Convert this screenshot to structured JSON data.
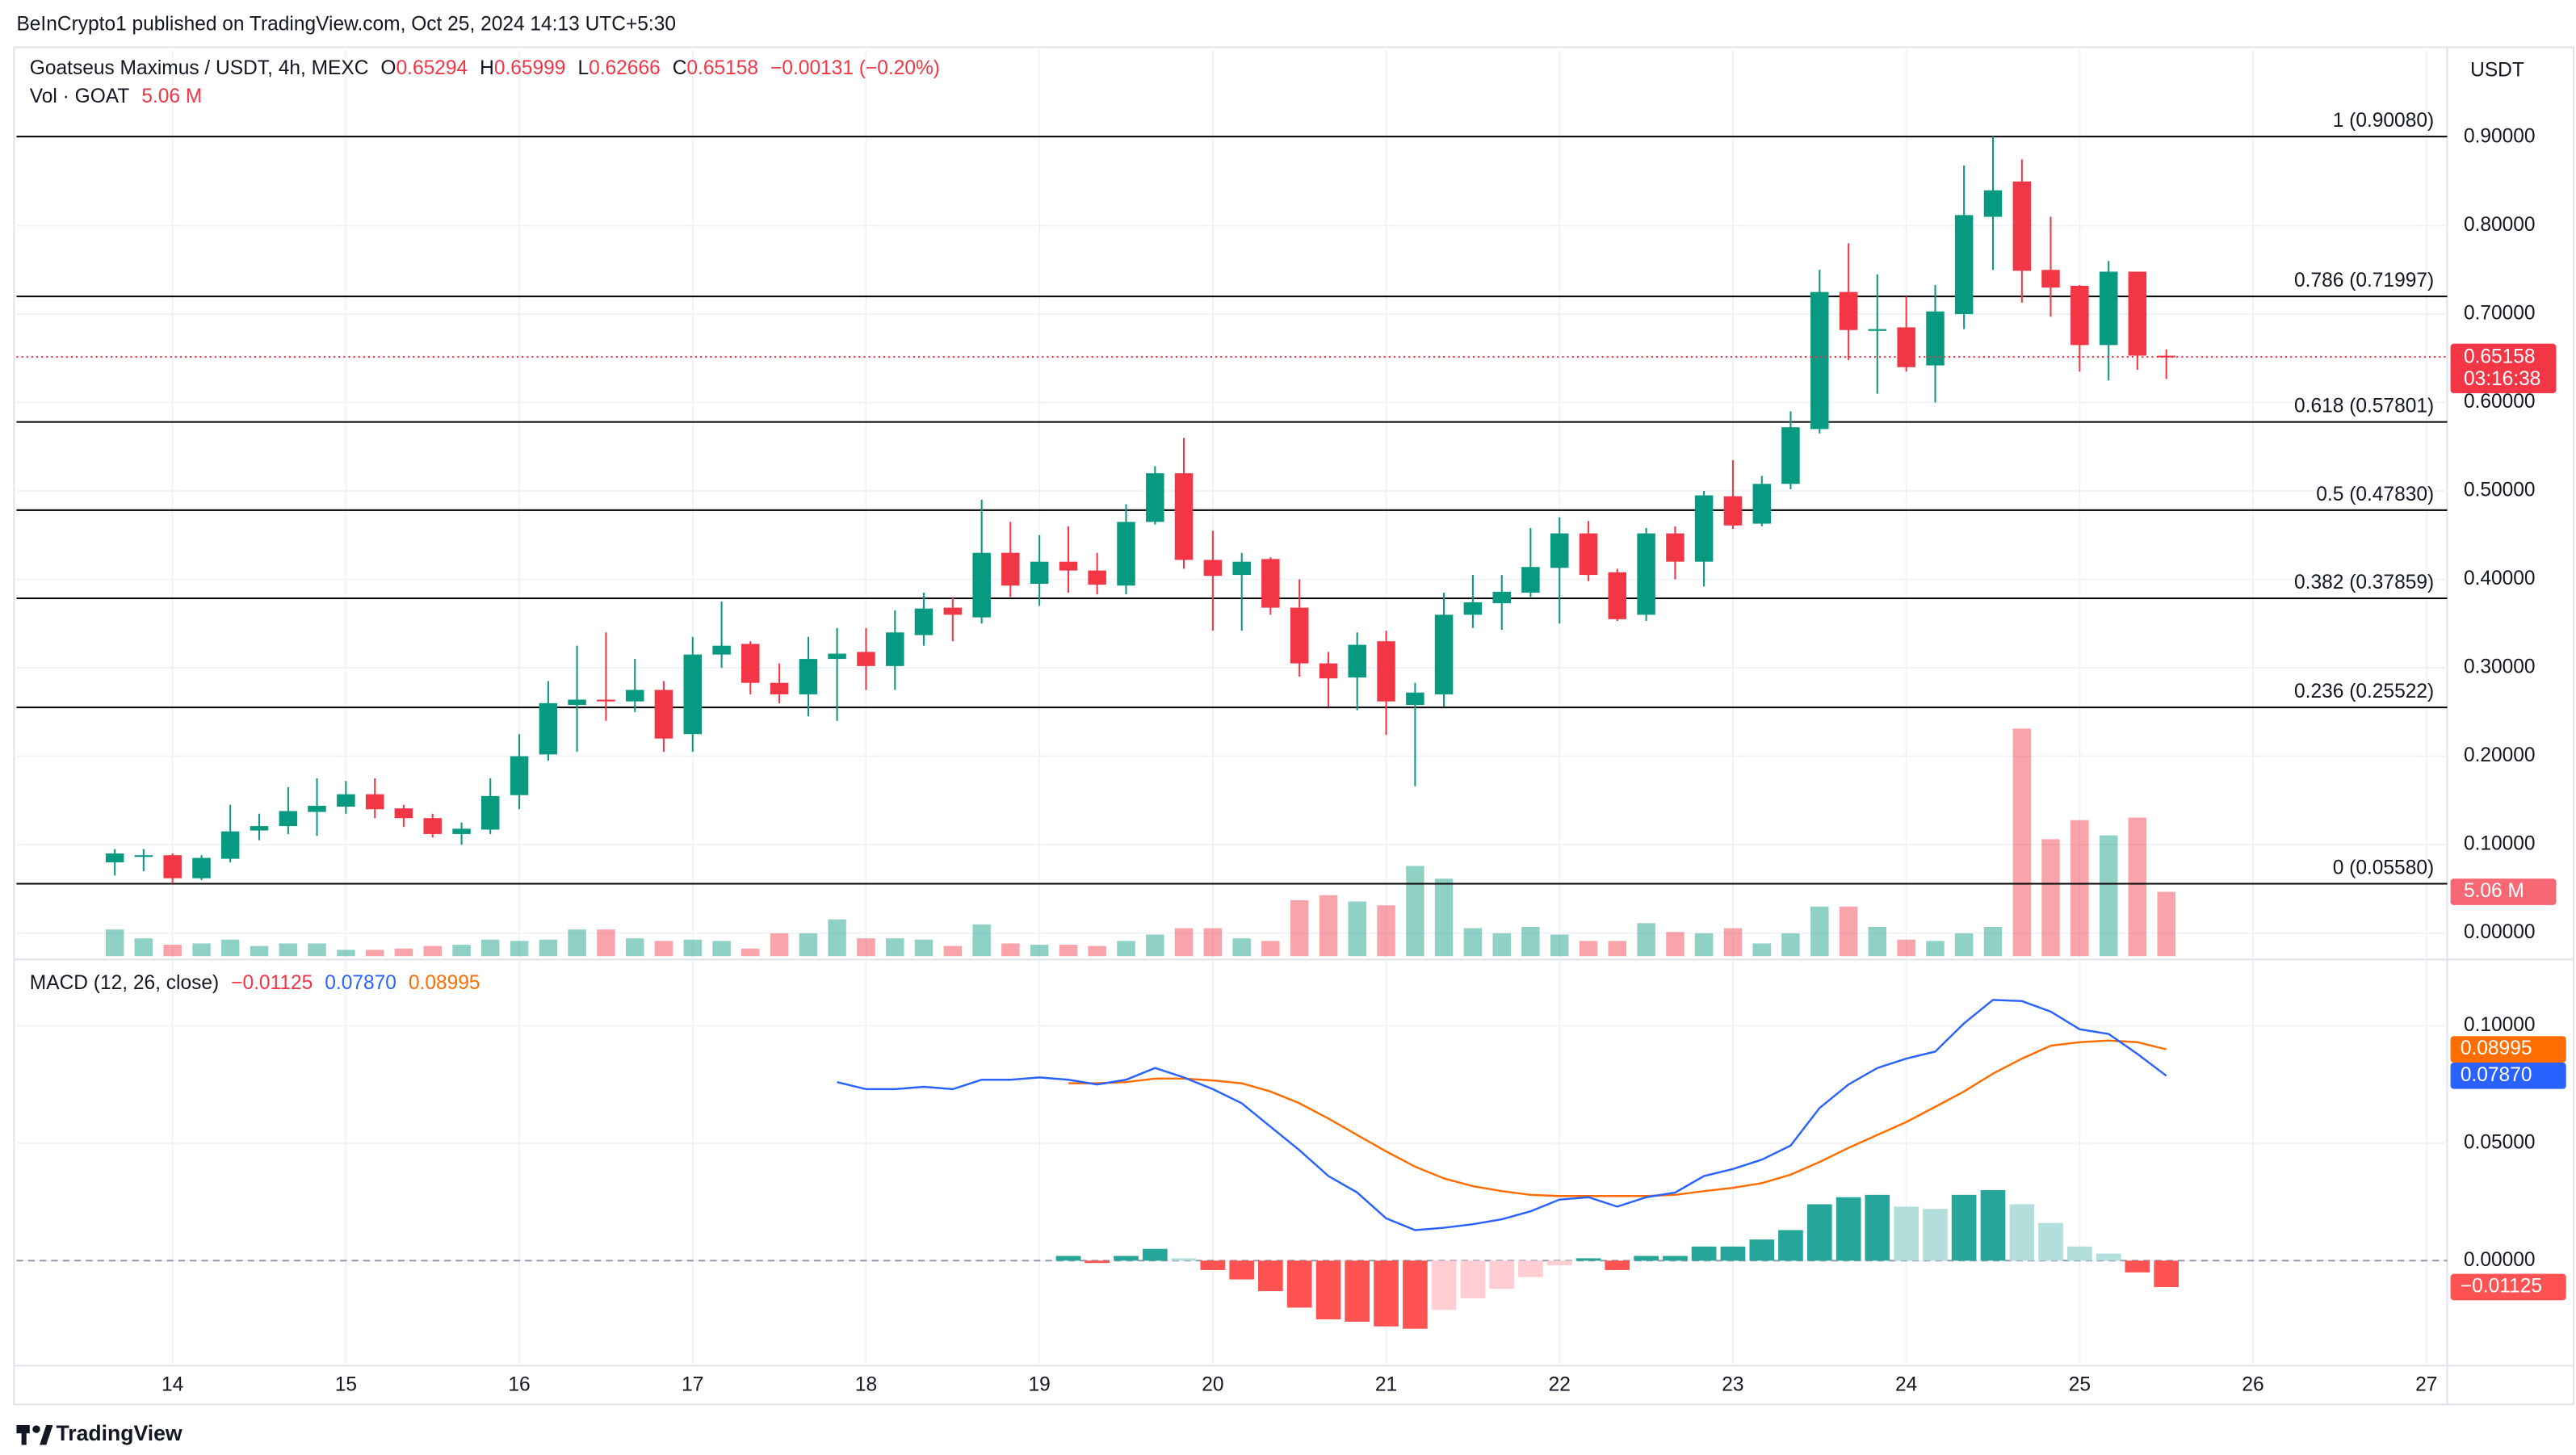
{
  "header": {
    "publisher": "BeInCrypto1 published on TradingView.com, Oct 25, 2024 14:13 UTC+5:30",
    "footer": "TradingView"
  },
  "chart_data": [
    {
      "type": "candlestick",
      "title": "Goatseus Maximus / USDT, 4h, MEXC",
      "ohlc_letters": [
        "O",
        "H",
        "L",
        "C"
      ],
      "change_label": "−0.00131 (−0.20%)",
      "currency": "USDT",
      "countdown": "03:16:38",
      "up_color": "#089981",
      "down_color": "#f23645",
      "x": [
        13.667,
        13.833,
        14,
        14.167,
        14.333,
        14.5,
        14.667,
        14.833,
        15,
        15.167,
        15.333,
        15.5,
        15.667,
        15.833,
        16,
        16.167,
        16.333,
        16.5,
        16.667,
        16.833,
        17,
        17.167,
        17.333,
        17.5,
        17.667,
        17.833,
        18,
        18.167,
        18.333,
        18.5,
        18.667,
        18.833,
        19,
        19.167,
        19.333,
        19.5,
        19.667,
        19.833,
        20,
        20.167,
        20.333,
        20.5,
        20.667,
        20.833,
        21,
        21.167,
        21.333,
        21.5,
        21.667,
        21.833,
        22,
        22.167,
        22.333,
        22.5,
        22.667,
        22.833,
        23,
        23.167,
        23.333,
        23.5,
        23.667,
        23.833,
        24,
        24.167,
        24.333,
        24.5,
        24.667,
        24.833,
        25,
        25.167,
        25.333,
        25.5
      ],
      "open": [
        0.08,
        0.087,
        0.088,
        0.062,
        0.084,
        0.116,
        0.121,
        0.137,
        0.143,
        0.157,
        0.141,
        0.13,
        0.112,
        0.117,
        0.156,
        0.202,
        0.258,
        0.264,
        0.262,
        0.275,
        0.225,
        0.315,
        0.327,
        0.283,
        0.27,
        0.31,
        0.318,
        0.302,
        0.337,
        0.368,
        0.357,
        0.43,
        0.395,
        0.42,
        0.41,
        0.393,
        0.465,
        0.52,
        0.422,
        0.405,
        0.423,
        0.368,
        0.305,
        0.289,
        0.33,
        0.258,
        0.27,
        0.36,
        0.373,
        0.385,
        0.413,
        0.452,
        0.408,
        0.36,
        0.452,
        0.42,
        0.494,
        0.463,
        0.508,
        0.57,
        0.725,
        0.681,
        0.685,
        0.642,
        0.7,
        0.81,
        0.85,
        0.75,
        0.732,
        0.665,
        0.748,
        0.65294
      ],
      "high": [
        0.095,
        0.095,
        0.09,
        0.088,
        0.145,
        0.135,
        0.165,
        0.175,
        0.172,
        0.175,
        0.145,
        0.135,
        0.125,
        0.175,
        0.225,
        0.285,
        0.325,
        0.34,
        0.31,
        0.285,
        0.335,
        0.375,
        0.33,
        0.305,
        0.335,
        0.345,
        0.345,
        0.365,
        0.385,
        0.38,
        0.49,
        0.465,
        0.45,
        0.46,
        0.43,
        0.485,
        0.528,
        0.56,
        0.455,
        0.43,
        0.425,
        0.4,
        0.318,
        0.34,
        0.342,
        0.283,
        0.385,
        0.405,
        0.405,
        0.458,
        0.47,
        0.466,
        0.412,
        0.458,
        0.46,
        0.5,
        0.535,
        0.517,
        0.59,
        0.75,
        0.78,
        0.745,
        0.72,
        0.733,
        0.868,
        0.9008,
        0.875,
        0.81,
        0.733,
        0.76,
        0.748,
        0.65999
      ],
      "low": [
        0.065,
        0.07,
        0.0558,
        0.06,
        0.08,
        0.105,
        0.112,
        0.11,
        0.135,
        0.13,
        0.12,
        0.108,
        0.1,
        0.112,
        0.14,
        0.195,
        0.205,
        0.24,
        0.25,
        0.205,
        0.205,
        0.3,
        0.27,
        0.26,
        0.245,
        0.24,
        0.275,
        0.275,
        0.325,
        0.33,
        0.35,
        0.38,
        0.37,
        0.385,
        0.383,
        0.383,
        0.462,
        0.412,
        0.342,
        0.342,
        0.36,
        0.29,
        0.256,
        0.252,
        0.224,
        0.166,
        0.256,
        0.345,
        0.343,
        0.38,
        0.35,
        0.398,
        0.353,
        0.353,
        0.4,
        0.392,
        0.457,
        0.46,
        0.502,
        0.565,
        0.648,
        0.61,
        0.635,
        0.6,
        0.683,
        0.75,
        0.713,
        0.697,
        0.635,
        0.625,
        0.637,
        0.62666
      ],
      "close": [
        0.09,
        0.088,
        0.062,
        0.085,
        0.115,
        0.121,
        0.138,
        0.144,
        0.157,
        0.14,
        0.13,
        0.112,
        0.118,
        0.155,
        0.2,
        0.26,
        0.264,
        0.262,
        0.275,
        0.22,
        0.315,
        0.325,
        0.283,
        0.27,
        0.31,
        0.316,
        0.302,
        0.34,
        0.367,
        0.36,
        0.43,
        0.393,
        0.42,
        0.41,
        0.394,
        0.465,
        0.52,
        0.422,
        0.404,
        0.42,
        0.368,
        0.305,
        0.288,
        0.326,
        0.262,
        0.272,
        0.36,
        0.374,
        0.386,
        0.414,
        0.452,
        0.405,
        0.355,
        0.452,
        0.42,
        0.495,
        0.461,
        0.508,
        0.572,
        0.725,
        0.682,
        0.683,
        0.64,
        0.703,
        0.812,
        0.84,
        0.749,
        0.73,
        0.665,
        0.748,
        0.653,
        0.65158
      ],
      "volume": {
        "name": "Vol · GOAT",
        "value_label": "5.06 M",
        "values": [
          2.1,
          1.4,
          0.9,
          1.0,
          1.3,
          0.8,
          1.0,
          1.0,
          0.5,
          0.5,
          0.6,
          0.8,
          0.9,
          1.3,
          1.2,
          1.3,
          2.1,
          2.1,
          1.4,
          1.2,
          1.3,
          1.2,
          0.6,
          1.8,
          1.8,
          2.9,
          1.4,
          1.4,
          1.3,
          0.8,
          2.5,
          1.0,
          0.9,
          0.9,
          0.8,
          1.2,
          1.7,
          2.2,
          2.2,
          1.4,
          1.2,
          4.4,
          4.8,
          4.3,
          4.0,
          7.1,
          6.1,
          2.2,
          1.8,
          2.3,
          1.7,
          1.2,
          1.2,
          2.6,
          1.9,
          1.8,
          2.2,
          1.0,
          1.8,
          3.9,
          3.9,
          2.3,
          1.3,
          1.2,
          1.8,
          2.3,
          17.9,
          9.2,
          10.7,
          9.5,
          10.9,
          5.06
        ]
      },
      "fib_levels": [
        {
          "label": "1 (0.90080)",
          "value": 0.9008
        },
        {
          "label": "0.786 (0.71997)",
          "value": 0.71997
        },
        {
          "label": "0.618 (0.57801)",
          "value": 0.57801
        },
        {
          "label": "0.5 (0.47830)",
          "value": 0.4783
        },
        {
          "label": "0.382 (0.37859)",
          "value": 0.37859
        },
        {
          "label": "0.236 (0.25522)",
          "value": 0.25522
        },
        {
          "label": "0 (0.05580)",
          "value": 0.0558
        }
      ],
      "fib_color": "#000000",
      "xlim": [
        13.1,
        27.12
      ],
      "xticks": [
        14,
        15,
        16,
        17,
        18,
        19,
        20,
        21,
        22,
        23,
        24,
        25,
        26,
        27
      ],
      "ylim": [
        -0.028,
        0.999
      ],
      "yticks": [
        {
          "value": 0,
          "label": "0.00000"
        },
        {
          "value": 0.1,
          "label": "0.10000"
        },
        {
          "value": 0.2,
          "label": "0.20000"
        },
        {
          "value": 0.3,
          "label": "0.30000"
        },
        {
          "value": 0.4,
          "label": "0.40000"
        },
        {
          "value": 0.5,
          "label": "0.50000"
        },
        {
          "value": 0.6,
          "label": "0.60000"
        },
        {
          "value": 0.7,
          "label": "0.70000"
        },
        {
          "value": 0.8,
          "label": "0.80000"
        },
        {
          "value": 0.9,
          "label": "0.90000"
        }
      ],
      "grid": true
    },
    {
      "type": "macd",
      "title": "MACD (12, 26, close)",
      "histogram": {
        "value_label": "−0.01125",
        "colors": [
          "#26a69a",
          "#b2dfdb",
          "#ffcdd2",
          "#ff5252"
        ],
        "values": [
          null,
          null,
          null,
          null,
          null,
          null,
          null,
          null,
          null,
          null,
          null,
          null,
          null,
          null,
          null,
          null,
          null,
          null,
          null,
          null,
          null,
          null,
          null,
          null,
          null,
          null,
          null,
          null,
          null,
          null,
          null,
          null,
          null,
          0.002,
          -0.001,
          0.002,
          0.005,
          0.001,
          -0.004,
          -0.008,
          -0.013,
          -0.02,
          -0.025,
          -0.026,
          -0.028,
          -0.029,
          -0.021,
          -0.016,
          -0.012,
          -0.007,
          -0.002,
          0.001,
          -0.004,
          0.002,
          0.002,
          0.006,
          0.006,
          0.009,
          0.013,
          0.024,
          0.027,
          0.028,
          0.023,
          0.022,
          0.028,
          0.03,
          0.024,
          0.016,
          0.006,
          0.003,
          -0.005,
          -0.01125
        ]
      },
      "macd": {
        "color": "#2962ff",
        "value_label": "0.07870",
        "values": [
          null,
          null,
          null,
          null,
          null,
          null,
          null,
          null,
          null,
          null,
          null,
          null,
          null,
          null,
          null,
          null,
          null,
          null,
          null,
          null,
          null,
          null,
          null,
          null,
          null,
          0.076,
          0.073,
          0.073,
          0.074,
          0.073,
          0.077,
          0.077,
          0.078,
          0.077,
          0.075,
          0.077,
          0.082,
          0.078,
          0.073,
          0.067,
          0.057,
          0.047,
          0.036,
          0.029,
          0.018,
          0.013,
          0.014,
          0.0155,
          0.0176,
          0.021,
          0.026,
          0.027,
          0.023,
          0.027,
          0.029,
          0.036,
          0.039,
          0.043,
          0.049,
          0.065,
          0.075,
          0.082,
          0.086,
          0.089,
          0.101,
          0.111,
          0.1105,
          0.106,
          0.0985,
          0.0965,
          0.088,
          0.0787
        ]
      },
      "signal": {
        "color": "#ff6d00",
        "value_label": "0.08995",
        "values": [
          null,
          null,
          null,
          null,
          null,
          null,
          null,
          null,
          null,
          null,
          null,
          null,
          null,
          null,
          null,
          null,
          null,
          null,
          null,
          null,
          null,
          null,
          null,
          null,
          null,
          null,
          null,
          null,
          null,
          null,
          null,
          null,
          null,
          0.0755,
          0.0755,
          0.076,
          0.0775,
          0.0775,
          0.0767,
          0.0755,
          0.072,
          0.067,
          0.0605,
          0.0535,
          0.0465,
          0.04,
          0.035,
          0.0317,
          0.0296,
          0.028,
          0.0275,
          0.0275,
          0.0275,
          0.0275,
          0.028,
          0.0296,
          0.031,
          0.033,
          0.0366,
          0.042,
          0.048,
          0.0535,
          0.059,
          0.0655,
          0.072,
          0.0796,
          0.086,
          0.0915,
          0.093,
          0.0937,
          0.093,
          0.08995
        ]
      },
      "ylim": [
        -0.044,
        0.1275
      ],
      "yticks": [
        {
          "value": 0,
          "label": "0.00000"
        },
        {
          "value": 0.05,
          "label": "0.05000"
        },
        {
          "value": 0.1,
          "label": "0.10000"
        }
      ],
      "grid": true
    }
  ]
}
